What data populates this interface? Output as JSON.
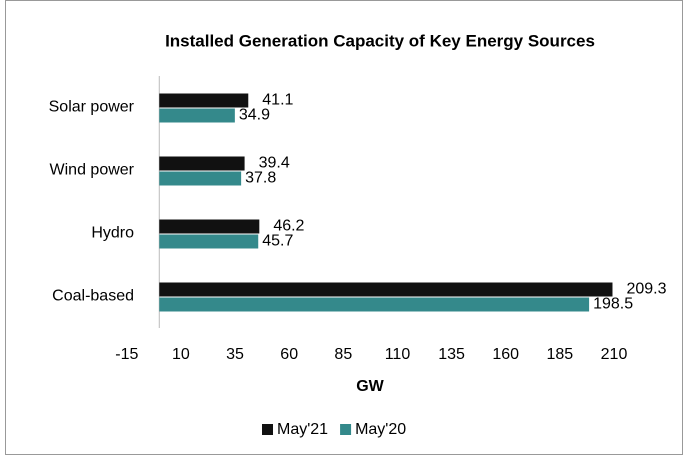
{
  "chart_data": {
    "type": "bar",
    "orientation": "horizontal",
    "title": "Installed Generation Capacity of Key Energy Sources",
    "x_label": "GW",
    "categories": [
      "Solar power",
      "Wind power",
      "Hydro",
      "Coal-based"
    ],
    "series": [
      {
        "name": "May'21",
        "color": "#111111",
        "values": [
          41.1,
          39.4,
          46.2,
          209.3
        ]
      },
      {
        "name": "May'20",
        "color": "#34898b",
        "values": [
          34.9,
          37.8,
          45.7,
          198.5
        ]
      }
    ],
    "xlim": [
      -15,
      210
    ],
    "xticks": [
      -15,
      10,
      35,
      60,
      85,
      110,
      135,
      160,
      185,
      210
    ],
    "grid": false,
    "legend": "bottom"
  }
}
